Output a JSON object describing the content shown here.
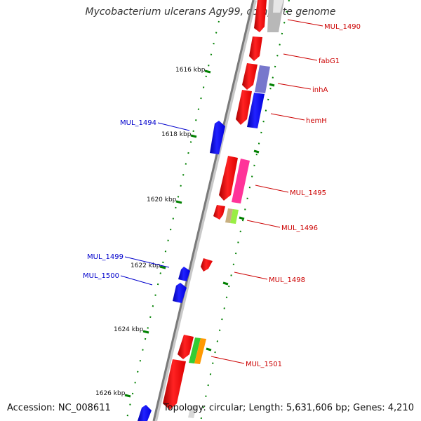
{
  "title": "Mycobacterium ulcerans Agy99, complete genome",
  "accession": "Accession: NC_008611",
  "summary": "Topology: circular; Length: 5,631,606 bp; Genes: 4,210",
  "ticks": [
    {
      "label": "1616 kbp"
    },
    {
      "label": "1618 kbp"
    },
    {
      "label": "1620 kbp"
    },
    {
      "label": "1622 kbp"
    },
    {
      "label": "1624 kbp"
    },
    {
      "label": "1626 kbp"
    }
  ],
  "genes": [
    {
      "label": "MUL_1490",
      "color": "#cc0000"
    },
    {
      "label": "fabG1",
      "color": "#cc0000"
    },
    {
      "label": "inhA",
      "color": "#cc0000"
    },
    {
      "label": "hemH",
      "color": "#cc0000"
    },
    {
      "label": "MUL_1494",
      "color": "#0000cc"
    },
    {
      "label": "MUL_1495",
      "color": "#cc0000"
    },
    {
      "label": "MUL_1496",
      "color": "#cc0000"
    },
    {
      "label": "MUL_1499",
      "color": "#0000cc"
    },
    {
      "label": "MUL_1500",
      "color": "#0000cc"
    },
    {
      "label": "MUL_1498",
      "color": "#cc0000"
    },
    {
      "label": "MUL_1501",
      "color": "#cc0000"
    }
  ],
  "colors": {
    "forward_gene": "#ff0000",
    "reverse_gene": "#0000ff",
    "backbone": "#808080",
    "tick": "#008000",
    "cog_pink": "#ff3399",
    "cog_grey": "#b0b0b0",
    "cog_purple": "#7777cc",
    "cog_tan": "#c8b080",
    "cog_lime": "#99ee44",
    "cog_green": "#33cc33",
    "cog_orange": "#ff9900"
  }
}
